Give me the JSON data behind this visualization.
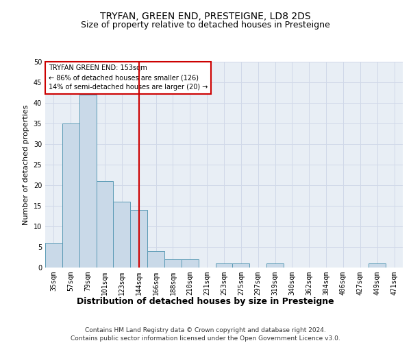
{
  "title": "TRYFAN, GREEN END, PRESTEIGNE, LD8 2DS",
  "subtitle": "Size of property relative to detached houses in Presteigne",
  "xlabel": "Distribution of detached houses by size in Presteigne",
  "ylabel": "Number of detached properties",
  "categories": [
    "35sqm",
    "57sqm",
    "79sqm",
    "101sqm",
    "123sqm",
    "144sqm",
    "166sqm",
    "188sqm",
    "210sqm",
    "231sqm",
    "253sqm",
    "275sqm",
    "297sqm",
    "319sqm",
    "340sqm",
    "362sqm",
    "384sqm",
    "406sqm",
    "427sqm",
    "449sqm",
    "471sqm"
  ],
  "values": [
    6,
    35,
    42,
    21,
    16,
    14,
    4,
    2,
    2,
    0,
    1,
    1,
    0,
    1,
    0,
    0,
    0,
    0,
    0,
    1,
    0
  ],
  "bar_color": "#c9d9e8",
  "bar_edge_color": "#5a9ab5",
  "vline_color": "#cc0000",
  "vline_index": 5.5,
  "ylim": [
    0,
    50
  ],
  "yticks": [
    0,
    5,
    10,
    15,
    20,
    25,
    30,
    35,
    40,
    45,
    50
  ],
  "annotation_title": "TRYFAN GREEN END: 153sqm",
  "annotation_line1": "← 86% of detached houses are smaller (126)",
  "annotation_line2": "14% of semi-detached houses are larger (20) →",
  "annotation_box_color": "#ffffff",
  "annotation_box_edge": "#cc0000",
  "grid_color": "#d0d8e8",
  "background_color": "#e8eef5",
  "footer1": "Contains HM Land Registry data © Crown copyright and database right 2024.",
  "footer2": "Contains public sector information licensed under the Open Government Licence v3.0.",
  "title_fontsize": 10,
  "subtitle_fontsize": 9,
  "ylabel_fontsize": 8,
  "xlabel_fontsize": 9,
  "tick_fontsize": 7,
  "annotation_fontsize": 7,
  "footer_fontsize": 6.5
}
